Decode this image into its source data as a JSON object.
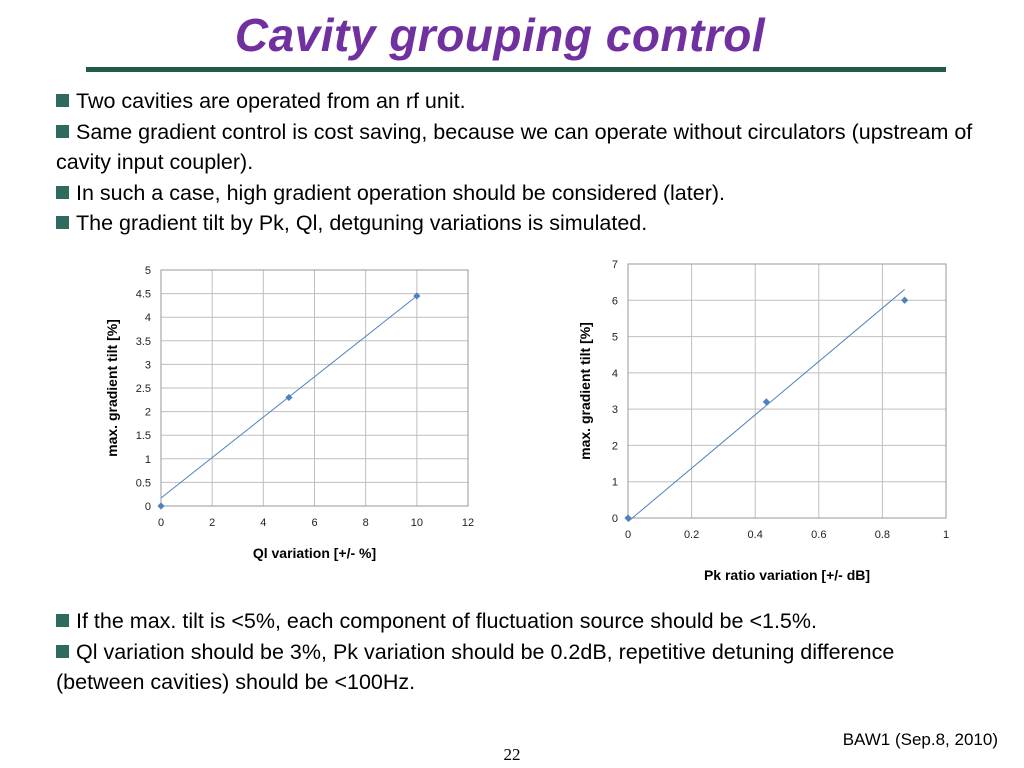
{
  "slide": {
    "title": "Cavity grouping control",
    "bullets_top": [
      "Two cavities are operated from an rf unit.",
      "Same gradient control is cost saving, because we can operate without circulators (upstream of cavity input coupler).",
      "In such a case, high gradient operation should be considered (later).",
      "The gradient tilt by Pk, Ql, detguning variations is simulated."
    ],
    "bullets_bottom": [
      "If the max. tilt is <5%, each component of fluctuation source should be <1.5%.",
      "Ql variation should be 3%, Pk variation should be 0.2dB, repetitive detuning difference (between cavities) should be <100Hz."
    ],
    "footer": "BAW1 (Sep.8, 2010)",
    "page_number": "22"
  },
  "colors": {
    "title": "#7030a0",
    "rule": "#1f5a4a",
    "bullet_marker": "#2e6b5e",
    "series": "#4f81bd"
  },
  "chart_data": [
    {
      "type": "scatter",
      "title": "",
      "xlabel": "Ql variation [+/- %]",
      "ylabel": "max. gradient tilt [%]",
      "xlim": [
        0,
        12
      ],
      "ylim": [
        0,
        5
      ],
      "xticks": [
        "0",
        "2",
        "4",
        "6",
        "8",
        "10",
        "12"
      ],
      "yticks": [
        "0",
        "0.5",
        "1",
        "1.5",
        "2",
        "2.5",
        "3",
        "3.5",
        "4",
        "4.5",
        "5"
      ],
      "grid": true,
      "series": [
        {
          "x": [
            0,
            5,
            10
          ],
          "y": [
            0,
            2.3,
            4.45
          ]
        }
      ],
      "trendline": {
        "x": [
          0,
          10
        ],
        "y": [
          0.17,
          4.45
        ]
      }
    },
    {
      "type": "scatter",
      "title": "",
      "xlabel": "Pk ratio variation [+/- dB]",
      "ylabel": "max. gradient tilt [%]",
      "xlim": [
        0,
        1
      ],
      "ylim": [
        0,
        7
      ],
      "xticks": [
        "0",
        "0.2",
        "0.4",
        "0.6",
        "0.8",
        "1"
      ],
      "yticks": [
        "0",
        "1",
        "2",
        "3",
        "4",
        "5",
        "6",
        "7"
      ],
      "grid": true,
      "series": [
        {
          "x": [
            0,
            0.435,
            0.87
          ],
          "y": [
            0,
            3.2,
            6.0
          ]
        }
      ],
      "trendline": {
        "x": [
          0,
          0.87
        ],
        "y": [
          -0.1,
          6.3
        ]
      }
    }
  ]
}
